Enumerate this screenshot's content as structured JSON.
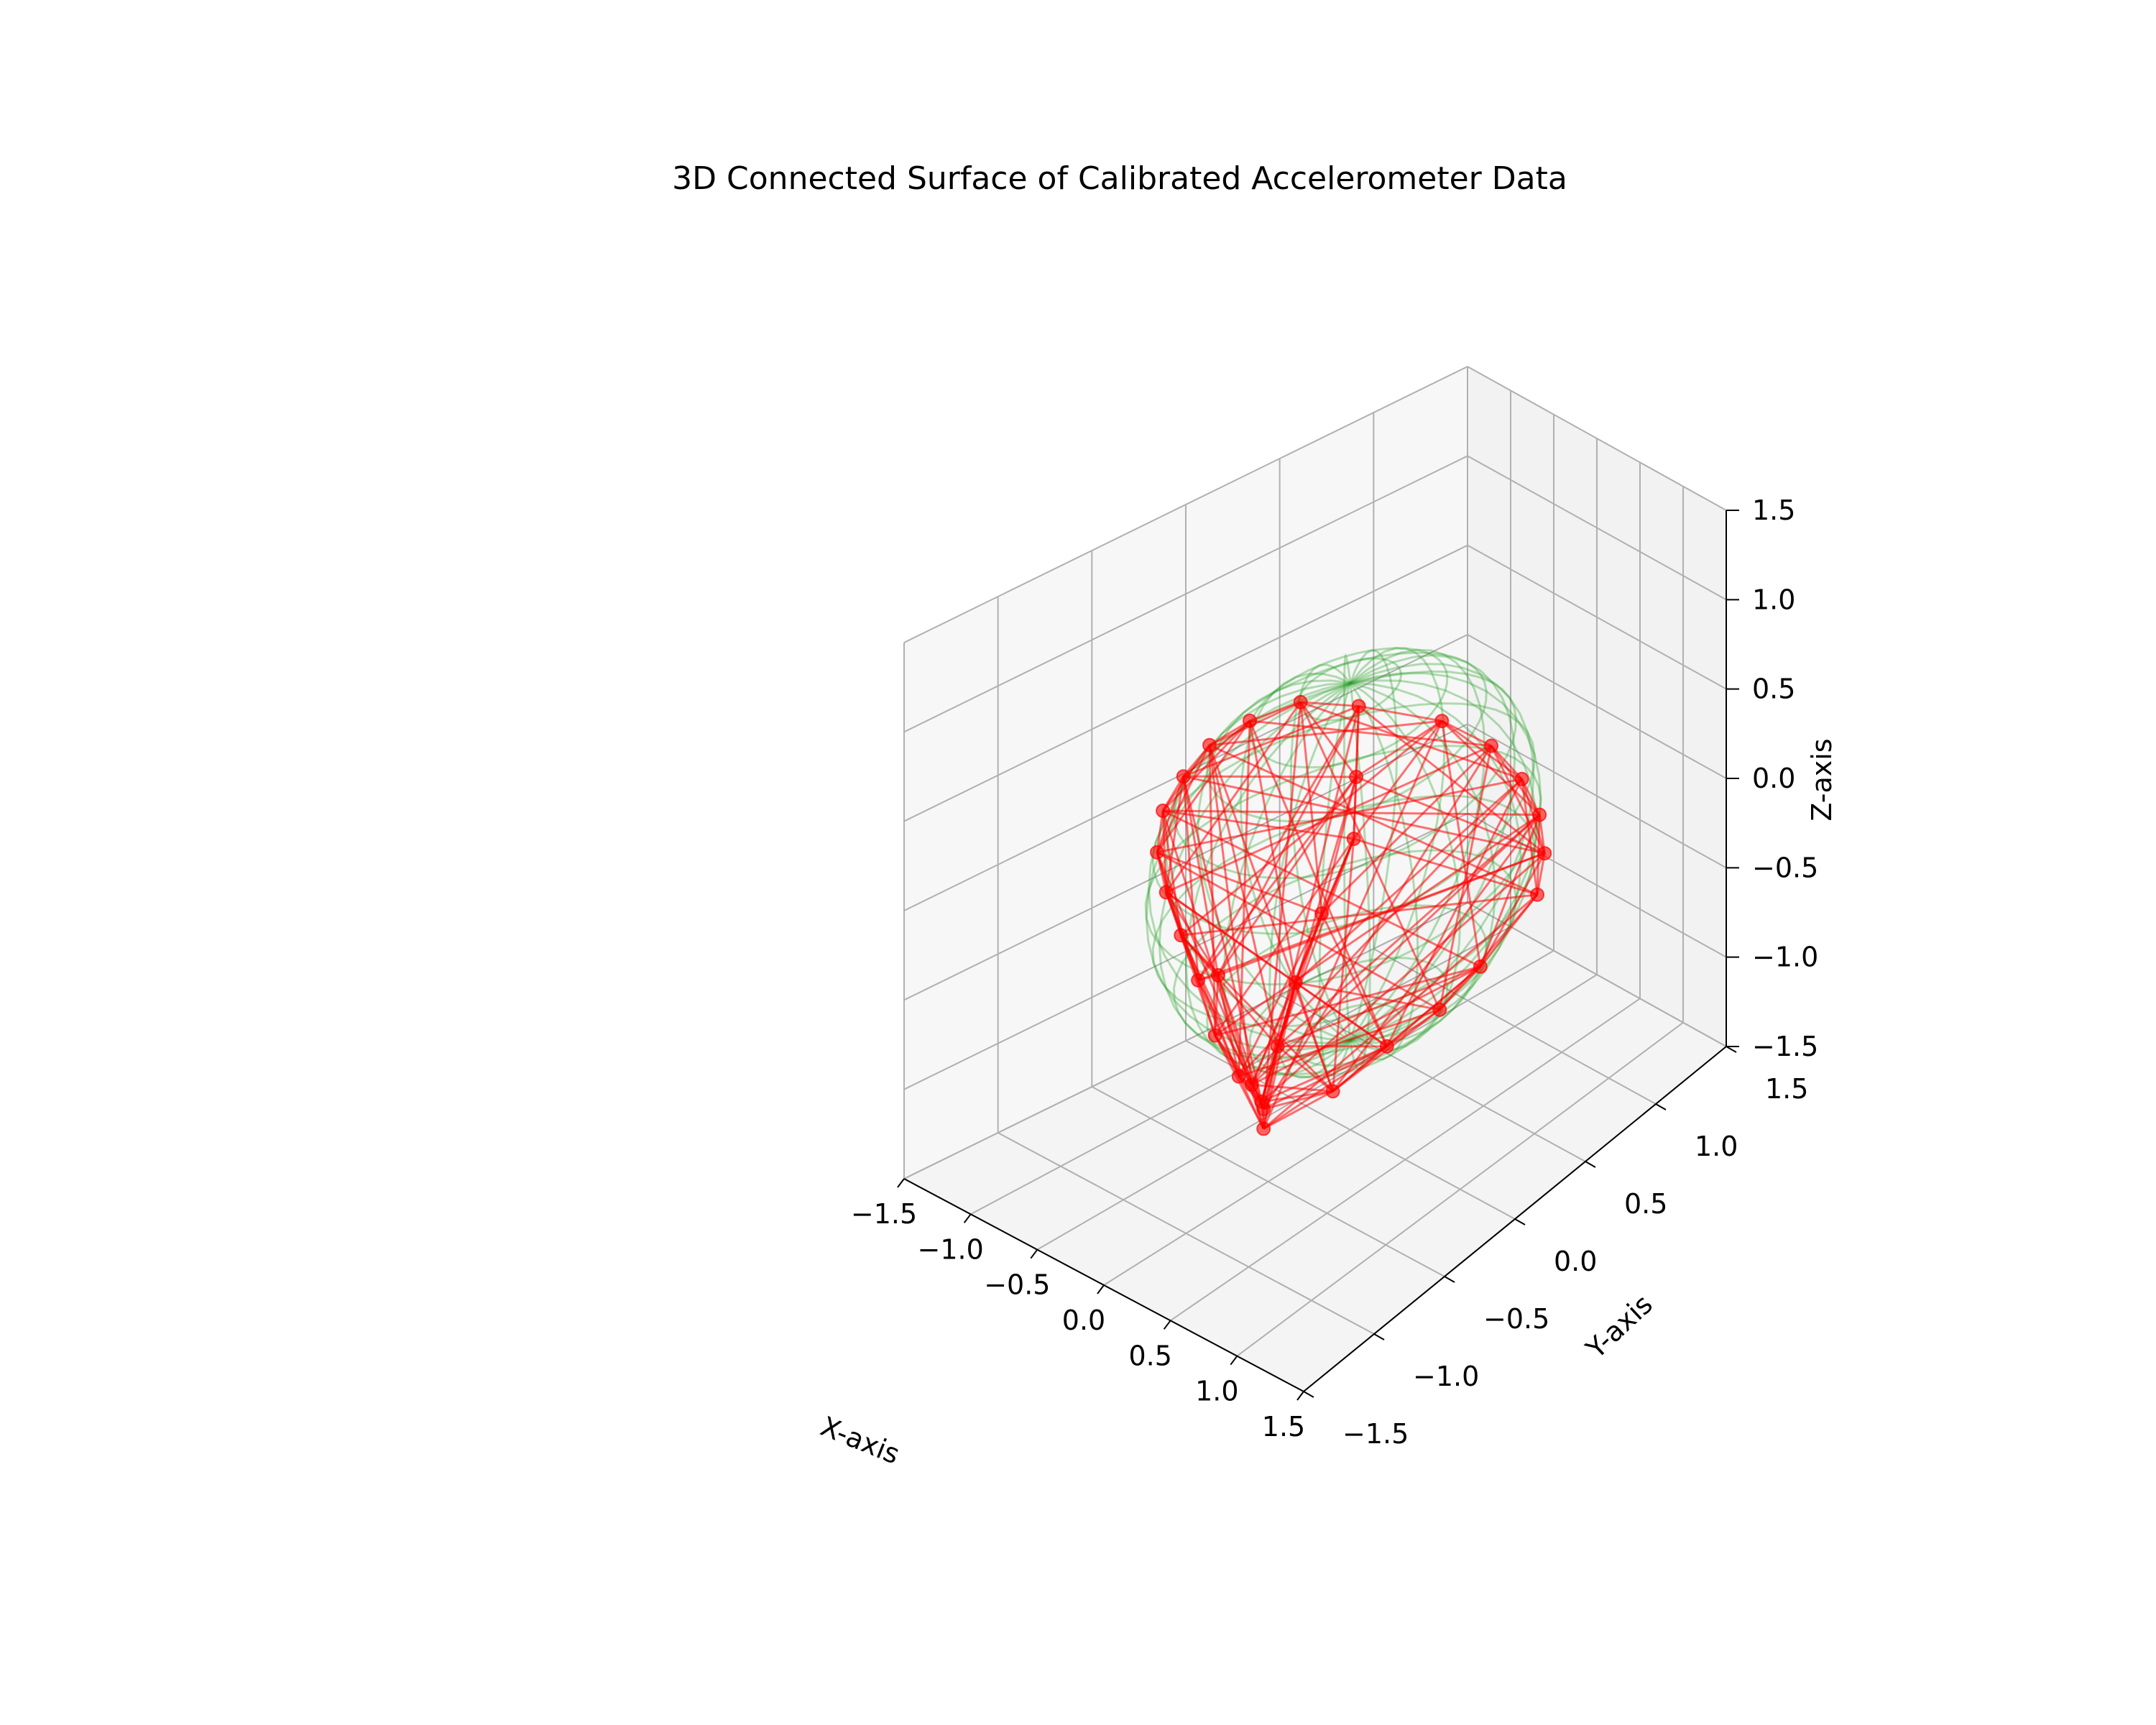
{
  "chart_data": {
    "type": "scatter",
    "subtype": "3d",
    "title": "3D Connected Surface of Calibrated Accelerometer Data",
    "xlabel": "X-axis",
    "ylabel": "Y-axis",
    "zlabel": "Z-axis",
    "xlim": [
      -1.5,
      1.5
    ],
    "ylim": [
      -1.5,
      1.5
    ],
    "zlim": [
      -1.5,
      1.5
    ],
    "x_ticks": [
      "−1.5",
      "−1.0",
      "−0.5",
      "0.0",
      "0.5",
      "1.0",
      "1.5"
    ],
    "y_ticks": [
      "−1.5",
      "−1.0",
      "−0.5",
      "0.0",
      "0.5",
      "1.0",
      "1.5"
    ],
    "z_ticks": [
      "−1.5",
      "−1.0",
      "−0.5",
      "0.0",
      "0.5",
      "1.0",
      "1.5"
    ],
    "grid": true,
    "colors": {
      "data_points": "#ff0000",
      "connections": "#ff0000",
      "reference_sphere": "#2ca02c",
      "pane_back": "#f2f2f2",
      "pane_side": "#f7f7f7",
      "pane_floor": "#f4f4f4",
      "grid": "#b0b0b0"
    },
    "series": [
      {
        "marker": "o",
        "points": [
          {
            "x": 0.15,
            "y": -0.05,
            "z": 0.95
          },
          {
            "x": 0.55,
            "y": 0.2,
            "z": 0.85
          },
          {
            "x": 0.8,
            "y": 0.35,
            "z": 0.7
          },
          {
            "x": 0.95,
            "y": 0.45,
            "z": 0.5
          },
          {
            "x": 1.05,
            "y": 0.5,
            "z": 0.3
          },
          {
            "x": 1.1,
            "y": 0.5,
            "z": 0.1
          },
          {
            "x": 1.1,
            "y": 0.45,
            "z": -0.1
          },
          {
            "x": -0.3,
            "y": -0.1,
            "z": 0.85
          },
          {
            "x": -0.6,
            "y": -0.2,
            "z": 0.7
          },
          {
            "x": -0.8,
            "y": -0.3,
            "z": 0.55
          },
          {
            "x": -0.95,
            "y": -0.35,
            "z": 0.35
          },
          {
            "x": -1.05,
            "y": -0.4,
            "z": 0.15
          },
          {
            "x": -1.1,
            "y": -0.4,
            "z": -0.1
          },
          {
            "x": -1.1,
            "y": -0.35,
            "z": -0.35
          },
          {
            "x": -1.05,
            "y": -0.3,
            "z": -0.6
          },
          {
            "x": -0.9,
            "y": -0.3,
            "z": -0.8
          },
          {
            "x": -0.6,
            "y": -0.4,
            "z": -0.95
          },
          {
            "x": -0.25,
            "y": -0.5,
            "z": -1.0
          },
          {
            "x": 0.1,
            "y": -0.6,
            "z": -1.0
          },
          {
            "x": 0.3,
            "y": -0.75,
            "z": -0.95
          },
          {
            "x": 0.35,
            "y": -0.8,
            "z": -0.75
          },
          {
            "x": 0.35,
            "y": -0.7,
            "z": -0.5
          },
          {
            "x": 0.3,
            "y": -0.55,
            "z": -0.25
          },
          {
            "x": 0.25,
            "y": -0.35,
            "z": 0.0
          },
          {
            "x": 0.25,
            "y": -0.15,
            "z": 0.3
          },
          {
            "x": 0.2,
            "y": -0.1,
            "z": 0.6
          },
          {
            "x": 0.55,
            "y": -0.5,
            "z": -0.8
          },
          {
            "x": 0.75,
            "y": -0.3,
            "z": -0.6
          },
          {
            "x": 0.95,
            "y": -0.1,
            "z": -0.45
          },
          {
            "x": 1.05,
            "y": 0.1,
            "z": -0.3
          },
          {
            "x": -0.5,
            "y": -0.45,
            "z": -0.55
          },
          {
            "x": 0.0,
            "y": -0.6,
            "z": -0.9
          }
        ]
      }
    ],
    "reference_sphere": {
      "center": [
        0.0,
        0.0,
        0.0
      ],
      "radius": 1.0,
      "style": "wireframe"
    }
  }
}
